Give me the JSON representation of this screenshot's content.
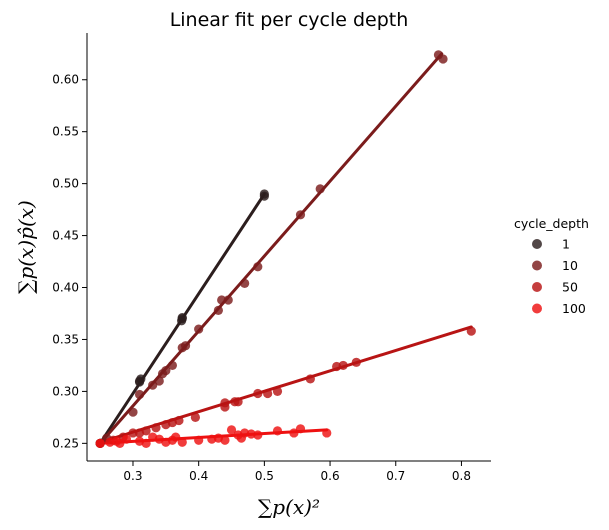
{
  "chart_data": {
    "type": "scatter",
    "title": "Linear fit per cycle depth",
    "xlabel": "∑p(x)²",
    "ylabel": "∑p(x)p̂(x)",
    "xlim": [
      0.23,
      0.845
    ],
    "ylim": [
      0.233,
      0.645
    ],
    "xticks": [
      0.3,
      0.4,
      0.5,
      0.6,
      0.7,
      0.8
    ],
    "yticks": [
      0.25,
      0.3,
      0.35,
      0.4,
      0.45,
      0.5,
      0.55,
      0.6
    ],
    "xtick_labels": [
      "0.3",
      "0.4",
      "0.5",
      "0.6",
      "0.7",
      "0.8"
    ],
    "ytick_labels": [
      "0.25",
      "0.30",
      "0.35",
      "0.40",
      "0.45",
      "0.50",
      "0.55",
      "0.60"
    ],
    "grid": false,
    "legend": {
      "title": "cycle_depth",
      "position": "right"
    },
    "series": [
      {
        "name": "1",
        "color": "#2c1e1e",
        "fit": [
          [
            0.25,
            0.25
          ],
          [
            0.5,
            0.49
          ]
        ],
        "points": [
          [
            0.25,
            0.25
          ],
          [
            0.25,
            0.25
          ],
          [
            0.31,
            0.31
          ],
          [
            0.31,
            0.309
          ],
          [
            0.312,
            0.312
          ],
          [
            0.375,
            0.37
          ],
          [
            0.374,
            0.368
          ],
          [
            0.375,
            0.371
          ],
          [
            0.5,
            0.49
          ],
          [
            0.5,
            0.488
          ]
        ]
      },
      {
        "name": "10",
        "color": "#7b1c1c",
        "fit": [
          [
            0.25,
            0.25
          ],
          [
            0.77,
            0.625
          ]
        ],
        "points": [
          [
            0.25,
            0.25
          ],
          [
            0.26,
            0.255
          ],
          [
            0.3,
            0.28
          ],
          [
            0.31,
            0.297
          ],
          [
            0.33,
            0.306
          ],
          [
            0.34,
            0.31
          ],
          [
            0.345,
            0.317
          ],
          [
            0.35,
            0.32
          ],
          [
            0.36,
            0.325
          ],
          [
            0.375,
            0.342
          ],
          [
            0.38,
            0.344
          ],
          [
            0.4,
            0.36
          ],
          [
            0.43,
            0.378
          ],
          [
            0.435,
            0.388
          ],
          [
            0.445,
            0.388
          ],
          [
            0.47,
            0.404
          ],
          [
            0.49,
            0.42
          ],
          [
            0.555,
            0.47
          ],
          [
            0.585,
            0.495
          ],
          [
            0.765,
            0.624
          ],
          [
            0.772,
            0.62
          ]
        ]
      },
      {
        "name": "50",
        "color": "#b81414",
        "fit": [
          [
            0.25,
            0.251
          ],
          [
            0.815,
            0.362
          ]
        ],
        "points": [
          [
            0.25,
            0.25
          ],
          [
            0.27,
            0.253
          ],
          [
            0.285,
            0.256
          ],
          [
            0.3,
            0.26
          ],
          [
            0.31,
            0.26
          ],
          [
            0.32,
            0.262
          ],
          [
            0.335,
            0.265
          ],
          [
            0.35,
            0.268
          ],
          [
            0.36,
            0.27
          ],
          [
            0.37,
            0.272
          ],
          [
            0.395,
            0.275
          ],
          [
            0.44,
            0.285
          ],
          [
            0.44,
            0.289
          ],
          [
            0.455,
            0.29
          ],
          [
            0.46,
            0.29
          ],
          [
            0.49,
            0.298
          ],
          [
            0.505,
            0.298
          ],
          [
            0.52,
            0.3
          ],
          [
            0.57,
            0.312
          ],
          [
            0.61,
            0.324
          ],
          [
            0.62,
            0.325
          ],
          [
            0.64,
            0.328
          ],
          [
            0.815,
            0.358
          ]
        ]
      },
      {
        "name": "100",
        "color": "#ee1111",
        "fit": [
          [
            0.25,
            0.25
          ],
          [
            0.595,
            0.263
          ]
        ],
        "points": [
          [
            0.25,
            0.25
          ],
          [
            0.265,
            0.251
          ],
          [
            0.275,
            0.252
          ],
          [
            0.28,
            0.25
          ],
          [
            0.29,
            0.254
          ],
          [
            0.31,
            0.252
          ],
          [
            0.32,
            0.25
          ],
          [
            0.33,
            0.256
          ],
          [
            0.34,
            0.254
          ],
          [
            0.35,
            0.251
          ],
          [
            0.36,
            0.253
          ],
          [
            0.365,
            0.256
          ],
          [
            0.375,
            0.251
          ],
          [
            0.4,
            0.253
          ],
          [
            0.42,
            0.254
          ],
          [
            0.43,
            0.255
          ],
          [
            0.44,
            0.253
          ],
          [
            0.45,
            0.263
          ],
          [
            0.46,
            0.258
          ],
          [
            0.465,
            0.255
          ],
          [
            0.47,
            0.26
          ],
          [
            0.48,
            0.259
          ],
          [
            0.49,
            0.258
          ],
          [
            0.52,
            0.262
          ],
          [
            0.545,
            0.26
          ],
          [
            0.555,
            0.264
          ],
          [
            0.595,
            0.26
          ]
        ]
      }
    ]
  }
}
